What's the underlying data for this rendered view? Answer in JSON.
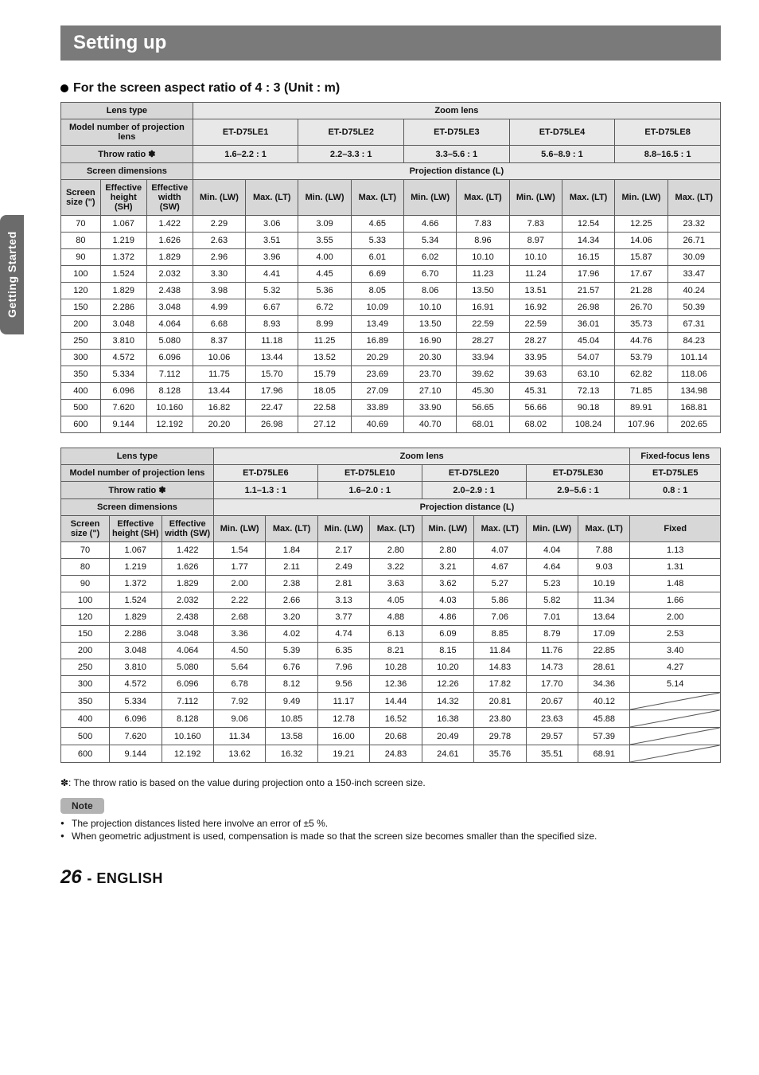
{
  "side_tab": "Getting Started",
  "title": "Setting up",
  "subheading": "For the screen aspect ratio of 4 : 3 (Unit : m)",
  "page_number": "26",
  "page_lang": "- ENGLISH",
  "table1": {
    "lens_type": "Lens type",
    "zoom_lens": "Zoom lens",
    "model_label": "Model number of projection lens",
    "throw_label": "Throw ratio ✽",
    "screen_dim_label": "Screen dimensions",
    "proj_dist_label": "Projection distance (L)",
    "screen_size_label": "Screen size (\")",
    "eff_h_label": "Effective height (SH)",
    "eff_w_label": "Effective width (SW)",
    "min_lw": "Min. (LW)",
    "max_lt": "Max. (LT)",
    "lenses": [
      "ET-D75LE1",
      "ET-D75LE2",
      "ET-D75LE3",
      "ET-D75LE4",
      "ET-D75LE8"
    ],
    "throws": [
      "1.6–2.2 : 1",
      "2.2–3.3 : 1",
      "3.3–5.6 : 1",
      "5.6–8.9 : 1",
      "8.8–16.5 : 1"
    ],
    "rows": [
      {
        "sz": "70",
        "sh": "1.067",
        "sw": "1.422",
        "v": [
          "2.29",
          "3.06",
          "3.09",
          "4.65",
          "4.66",
          "7.83",
          "7.83",
          "12.54",
          "12.25",
          "23.32"
        ]
      },
      {
        "sz": "80",
        "sh": "1.219",
        "sw": "1.626",
        "v": [
          "2.63",
          "3.51",
          "3.55",
          "5.33",
          "5.34",
          "8.96",
          "8.97",
          "14.34",
          "14.06",
          "26.71"
        ]
      },
      {
        "sz": "90",
        "sh": "1.372",
        "sw": "1.829",
        "v": [
          "2.96",
          "3.96",
          "4.00",
          "6.01",
          "6.02",
          "10.10",
          "10.10",
          "16.15",
          "15.87",
          "30.09"
        ]
      },
      {
        "sz": "100",
        "sh": "1.524",
        "sw": "2.032",
        "v": [
          "3.30",
          "4.41",
          "4.45",
          "6.69",
          "6.70",
          "11.23",
          "11.24",
          "17.96",
          "17.67",
          "33.47"
        ]
      },
      {
        "sz": "120",
        "sh": "1.829",
        "sw": "2.438",
        "v": [
          "3.98",
          "5.32",
          "5.36",
          "8.05",
          "8.06",
          "13.50",
          "13.51",
          "21.57",
          "21.28",
          "40.24"
        ]
      },
      {
        "sz": "150",
        "sh": "2.286",
        "sw": "3.048",
        "v": [
          "4.99",
          "6.67",
          "6.72",
          "10.09",
          "10.10",
          "16.91",
          "16.92",
          "26.98",
          "26.70",
          "50.39"
        ]
      },
      {
        "sz": "200",
        "sh": "3.048",
        "sw": "4.064",
        "v": [
          "6.68",
          "8.93",
          "8.99",
          "13.49",
          "13.50",
          "22.59",
          "22.59",
          "36.01",
          "35.73",
          "67.31"
        ]
      },
      {
        "sz": "250",
        "sh": "3.810",
        "sw": "5.080",
        "v": [
          "8.37",
          "11.18",
          "11.25",
          "16.89",
          "16.90",
          "28.27",
          "28.27",
          "45.04",
          "44.76",
          "84.23"
        ]
      },
      {
        "sz": "300",
        "sh": "4.572",
        "sw": "6.096",
        "v": [
          "10.06",
          "13.44",
          "13.52",
          "20.29",
          "20.30",
          "33.94",
          "33.95",
          "54.07",
          "53.79",
          "101.14"
        ]
      },
      {
        "sz": "350",
        "sh": "5.334",
        "sw": "7.112",
        "v": [
          "11.75",
          "15.70",
          "15.79",
          "23.69",
          "23.70",
          "39.62",
          "39.63",
          "63.10",
          "62.82",
          "118.06"
        ]
      },
      {
        "sz": "400",
        "sh": "6.096",
        "sw": "8.128",
        "v": [
          "13.44",
          "17.96",
          "18.05",
          "27.09",
          "27.10",
          "45.30",
          "45.31",
          "72.13",
          "71.85",
          "134.98"
        ]
      },
      {
        "sz": "500",
        "sh": "7.620",
        "sw": "10.160",
        "v": [
          "16.82",
          "22.47",
          "22.58",
          "33.89",
          "33.90",
          "56.65",
          "56.66",
          "90.18",
          "89.91",
          "168.81"
        ]
      },
      {
        "sz": "600",
        "sh": "9.144",
        "sw": "12.192",
        "v": [
          "20.20",
          "26.98",
          "27.12",
          "40.69",
          "40.70",
          "68.01",
          "68.02",
          "108.24",
          "107.96",
          "202.65"
        ]
      }
    ]
  },
  "table2": {
    "lens_type": "Lens type",
    "zoom_lens": "Zoom lens",
    "fixed_focus": "Fixed-focus lens",
    "model_label": "Model number of projection lens",
    "throw_label": "Throw ratio ✽",
    "screen_dim_label": "Screen dimensions",
    "proj_dist_label": "Projection distance (L)",
    "screen_size_label": "Screen size (\")",
    "eff_h_label": "Effective height (SH)",
    "eff_w_label": "Effective width (SW)",
    "min_lw": "Min. (LW)",
    "max_lt": "Max. (LT)",
    "fixed_label": "Fixed",
    "lenses": [
      "ET-D75LE6",
      "ET-D75LE10",
      "ET-D75LE20",
      "ET-D75LE30",
      "ET-D75LE5"
    ],
    "throws": [
      "1.1–1.3 : 1",
      "1.6–2.0 : 1",
      "2.0–2.9 : 1",
      "2.9–5.6 : 1",
      "0.8 : 1"
    ],
    "rows": [
      {
        "sz": "70",
        "sh": "1.067",
        "sw": "1.422",
        "v": [
          "1.54",
          "1.84",
          "2.17",
          "2.80",
          "2.80",
          "4.07",
          "4.04",
          "7.88"
        ],
        "f": "1.13"
      },
      {
        "sz": "80",
        "sh": "1.219",
        "sw": "1.626",
        "v": [
          "1.77",
          "2.11",
          "2.49",
          "3.22",
          "3.21",
          "4.67",
          "4.64",
          "9.03"
        ],
        "f": "1.31"
      },
      {
        "sz": "90",
        "sh": "1.372",
        "sw": "1.829",
        "v": [
          "2.00",
          "2.38",
          "2.81",
          "3.63",
          "3.62",
          "5.27",
          "5.23",
          "10.19"
        ],
        "f": "1.48"
      },
      {
        "sz": "100",
        "sh": "1.524",
        "sw": "2.032",
        "v": [
          "2.22",
          "2.66",
          "3.13",
          "4.05",
          "4.03",
          "5.86",
          "5.82",
          "11.34"
        ],
        "f": "1.66"
      },
      {
        "sz": "120",
        "sh": "1.829",
        "sw": "2.438",
        "v": [
          "2.68",
          "3.20",
          "3.77",
          "4.88",
          "4.86",
          "7.06",
          "7.01",
          "13.64"
        ],
        "f": "2.00"
      },
      {
        "sz": "150",
        "sh": "2.286",
        "sw": "3.048",
        "v": [
          "3.36",
          "4.02",
          "4.74",
          "6.13",
          "6.09",
          "8.85",
          "8.79",
          "17.09"
        ],
        "f": "2.53"
      },
      {
        "sz": "200",
        "sh": "3.048",
        "sw": "4.064",
        "v": [
          "4.50",
          "5.39",
          "6.35",
          "8.21",
          "8.15",
          "11.84",
          "11.76",
          "22.85"
        ],
        "f": "3.40"
      },
      {
        "sz": "250",
        "sh": "3.810",
        "sw": "5.080",
        "v": [
          "5.64",
          "6.76",
          "7.96",
          "10.28",
          "10.20",
          "14.83",
          "14.73",
          "28.61"
        ],
        "f": "4.27"
      },
      {
        "sz": "300",
        "sh": "4.572",
        "sw": "6.096",
        "v": [
          "6.78",
          "8.12",
          "9.56",
          "12.36",
          "12.26",
          "17.82",
          "17.70",
          "34.36"
        ],
        "f": "5.14"
      },
      {
        "sz": "350",
        "sh": "5.334",
        "sw": "7.112",
        "v": [
          "7.92",
          "9.49",
          "11.17",
          "14.44",
          "14.32",
          "20.81",
          "20.67",
          "40.12"
        ],
        "f": null
      },
      {
        "sz": "400",
        "sh": "6.096",
        "sw": "8.128",
        "v": [
          "9.06",
          "10.85",
          "12.78",
          "16.52",
          "16.38",
          "23.80",
          "23.63",
          "45.88"
        ],
        "f": null
      },
      {
        "sz": "500",
        "sh": "7.620",
        "sw": "10.160",
        "v": [
          "11.34",
          "13.58",
          "16.00",
          "20.68",
          "20.49",
          "29.78",
          "29.57",
          "57.39"
        ],
        "f": null
      },
      {
        "sz": "600",
        "sh": "9.144",
        "sw": "12.192",
        "v": [
          "13.62",
          "16.32",
          "19.21",
          "24.83",
          "24.61",
          "35.76",
          "35.51",
          "68.91"
        ],
        "f": null
      }
    ]
  },
  "star_note": "✽: The throw ratio is based on the value during projection onto a 150-inch screen size.",
  "note_label": "Note",
  "notes": [
    "The projection distances listed here involve an error of ±5 %.",
    "When geometric adjustment is used, compensation is made so that the screen size becomes smaller than the specified size."
  ]
}
